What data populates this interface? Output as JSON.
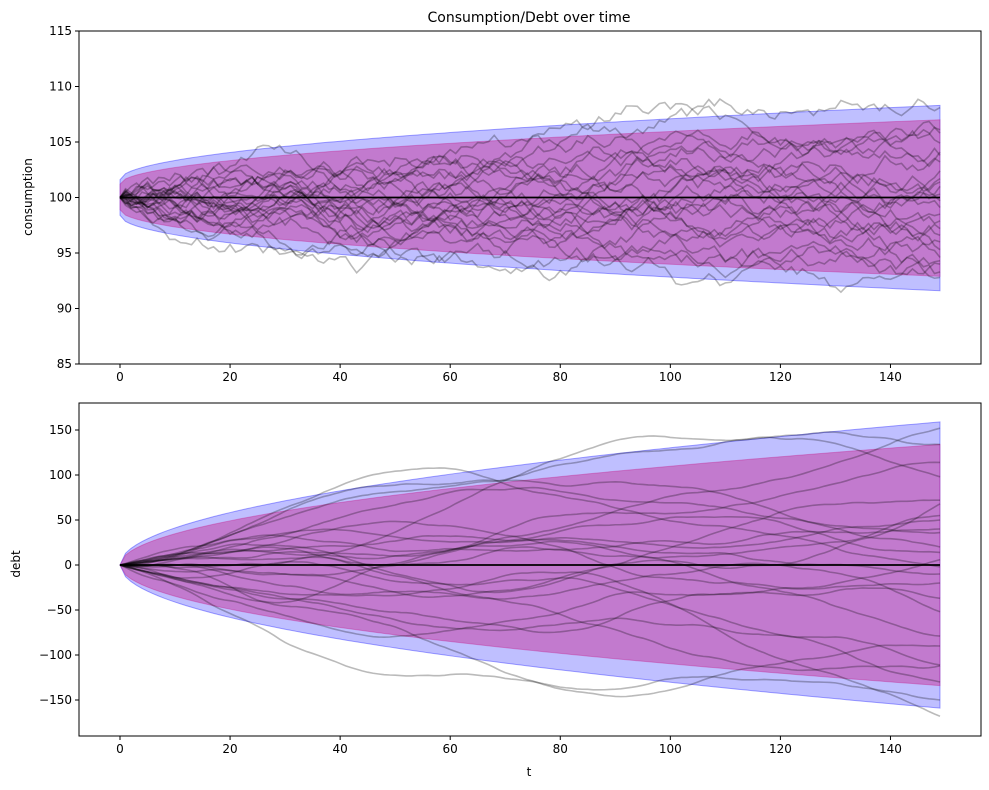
{
  "chart_data": [
    {
      "type": "line",
      "title": "Consumption/Debt over time",
      "xlabel": "",
      "ylabel": "consumption",
      "xlim": [
        -7.45,
        156.45
      ],
      "ylim": [
        85,
        115
      ],
      "xticks": [
        0,
        20,
        40,
        60,
        80,
        100,
        120,
        140
      ],
      "yticks": [
        85,
        90,
        95,
        100,
        105,
        110,
        115
      ],
      "xtick_labels": [
        "0",
        "20",
        "40",
        "60",
        "80",
        "100",
        "120",
        "140"
      ],
      "ytick_labels": [
        "85",
        "90",
        "95",
        "100",
        "105",
        "110",
        "115"
      ],
      "mean_line": {
        "value": 100,
        "x_range": [
          0,
          149
        ],
        "color": "#000000"
      },
      "bands": [
        {
          "kind": "outer",
          "color": "#0000ff",
          "opacity": 0.25,
          "x": [
            0,
            149
          ],
          "lower_at_end": 91.6,
          "upper_at_end": 108.3,
          "lower_at_start": 98.4,
          "upper_at_start": 101.6
        },
        {
          "kind": "inner",
          "color": "#c71585",
          "opacity": 0.4,
          "x": [
            0,
            149
          ],
          "lower_at_end": 92.9,
          "upper_at_end": 107.0,
          "lower_at_start": 98.9,
          "upper_at_start": 101.2
        }
      ],
      "sample_paths": {
        "count": 25,
        "x_range": [
          0,
          149
        ],
        "start": 100,
        "color": "#000000",
        "opacity": 0.27,
        "end_values": [
          108.1,
          105.8,
          104.9,
          104.1,
          103.2,
          102.4,
          101.7,
          101.0,
          100.3,
          99.7,
          99.1,
          98.5,
          97.9,
          97.2,
          96.6,
          96.0,
          95.3,
          94.6,
          94.0,
          93.3,
          92.8,
          94.3,
          101.4,
          103.8,
          106.1
        ]
      }
    },
    {
      "type": "line",
      "title": "",
      "xlabel": "t",
      "ylabel": "debt",
      "xlim": [
        -7.45,
        156.45
      ],
      "ylim": [
        -190,
        180
      ],
      "xticks": [
        0,
        20,
        40,
        60,
        80,
        100,
        120,
        140
      ],
      "yticks": [
        -150,
        -100,
        -50,
        0,
        50,
        100,
        150
      ],
      "xtick_labels": [
        "0",
        "20",
        "40",
        "60",
        "80",
        "100",
        "120",
        "140"
      ],
      "ytick_labels": [
        "−150",
        "−100",
        "−50",
        "0",
        "50",
        "100",
        "150"
      ],
      "mean_line": {
        "value": 0,
        "x_range": [
          0,
          149
        ],
        "color": "#000000"
      },
      "bands": [
        {
          "kind": "outer",
          "color": "#0000ff",
          "opacity": 0.25,
          "x": [
            0,
            149
          ],
          "lower_at_end": -159,
          "upper_at_end": 159,
          "lower_at_start": 0,
          "upper_at_start": 0
        },
        {
          "kind": "inner",
          "color": "#c71585",
          "opacity": 0.4,
          "x": [
            0,
            149
          ],
          "lower_at_end": -134,
          "upper_at_end": 134,
          "lower_at_start": 0,
          "upper_at_start": 0
        }
      ],
      "sample_paths": {
        "count": 25,
        "x_range": [
          0,
          149
        ],
        "start": 0,
        "color": "#000000",
        "opacity": 0.27,
        "end_values": [
          152,
          134,
          114,
          98,
          72,
          68,
          55,
          50,
          40,
          36,
          20,
          14,
          6,
          -2,
          -10,
          -20,
          -37,
          -52,
          -79,
          -90,
          -111,
          -112,
          -130,
          -150,
          -168
        ]
      }
    }
  ]
}
